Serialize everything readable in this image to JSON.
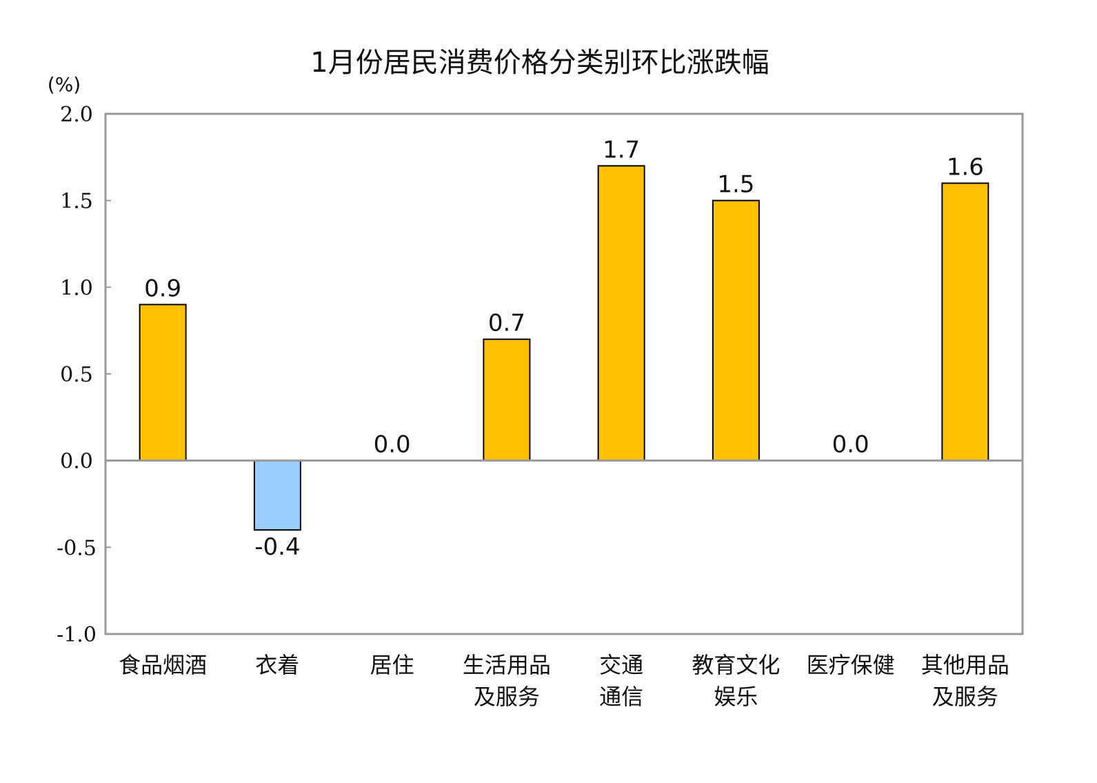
{
  "chart_data": {
    "type": "bar",
    "title": "1月份居民消费价格分类别环比涨跌幅",
    "ylabel": "(%)",
    "xlabel": "",
    "ylim": [
      -1.0,
      2.0
    ],
    "yticks": [
      "2.0",
      "1.5",
      "1.0",
      "0.5",
      "0.0",
      "-0.5",
      "-1.0"
    ],
    "ytick_values": [
      2.0,
      1.5,
      1.0,
      0.5,
      0.0,
      -0.5,
      -1.0
    ],
    "categories": [
      [
        "食品烟酒"
      ],
      [
        "衣着"
      ],
      [
        "居住"
      ],
      [
        "生活用品",
        "及服务"
      ],
      [
        "交通",
        "通信"
      ],
      [
        "教育文化",
        "娱乐"
      ],
      [
        "医疗保健"
      ],
      [
        "其他用品",
        "及服务"
      ]
    ],
    "values": [
      0.9,
      -0.4,
      0.0,
      0.7,
      1.7,
      1.5,
      0.0,
      1.6
    ],
    "value_labels": [
      "0.9",
      "-0.4",
      "0.0",
      "0.7",
      "1.7",
      "1.5",
      "0.0",
      "1.6"
    ],
    "grid": false,
    "colors": {
      "positive": "#FFC000",
      "negative": "#99CCFF",
      "axis": "#999999",
      "bar_border": "#000000"
    }
  }
}
